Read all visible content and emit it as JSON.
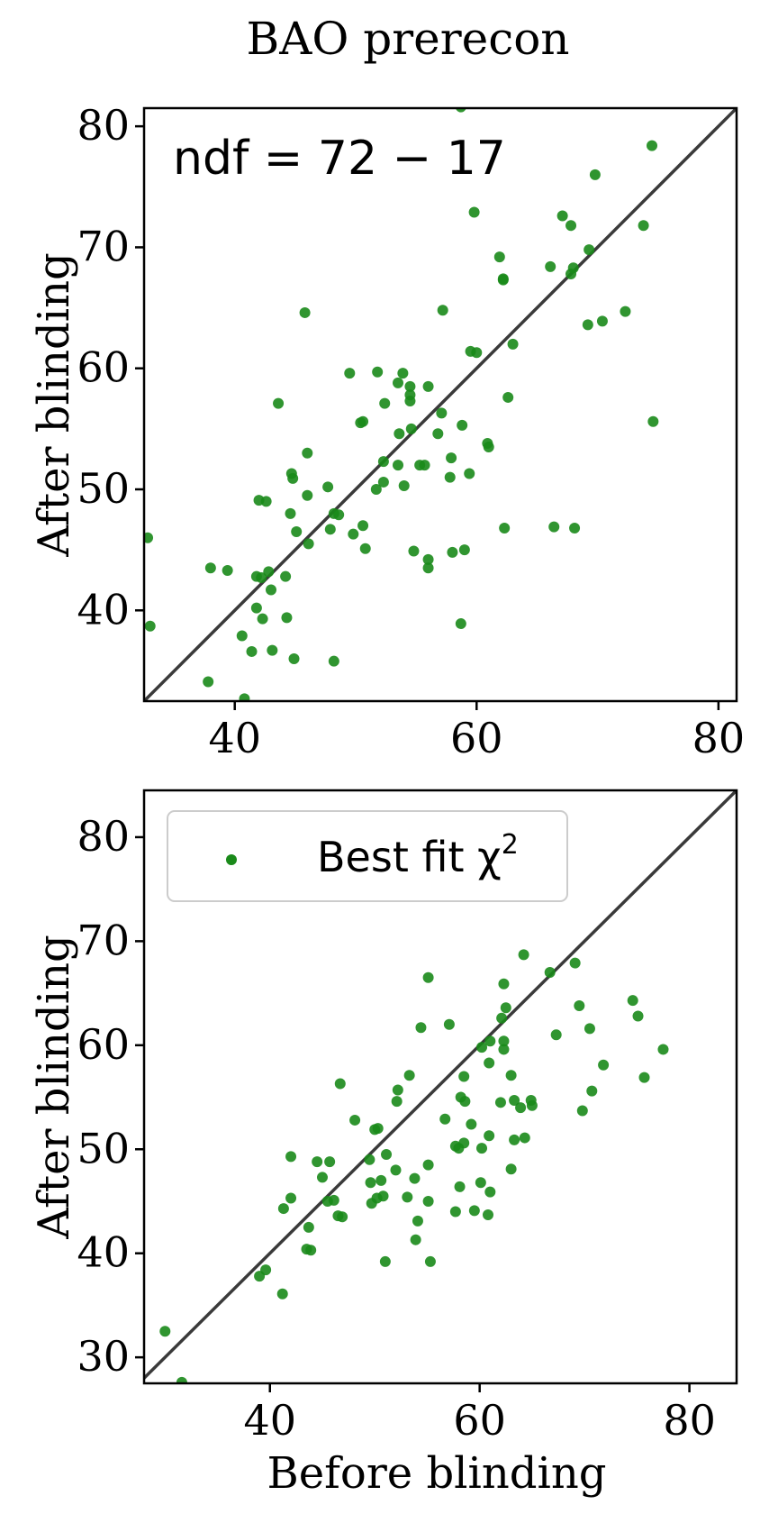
{
  "title": "BAO prerecon",
  "colors": {
    "points": "#1a8a1a",
    "diagonal": "#3a3a3a",
    "axes": "#000000"
  },
  "chart_data": [
    {
      "type": "scatter",
      "xlabel": "",
      "ylabel": "After blinding",
      "xlim": [
        32.5,
        81.5
      ],
      "ylim": [
        32.5,
        81.5
      ],
      "xticks": [
        "40",
        "60",
        "80"
      ],
      "yticks": [
        "40",
        "50",
        "60",
        "70",
        "80"
      ],
      "annotation": "ndf = 72 − 17",
      "diagonal": true,
      "grid": false,
      "points": [
        [
          58.7,
          81.6
        ],
        [
          74.5,
          78.4
        ],
        [
          69.8,
          76.0
        ],
        [
          59.8,
          72.9
        ],
        [
          67.1,
          72.6
        ],
        [
          67.8,
          71.8
        ],
        [
          73.8,
          71.8
        ],
        [
          61.9,
          69.2
        ],
        [
          69.3,
          69.8
        ],
        [
          66.1,
          68.4
        ],
        [
          68.0,
          68.3
        ],
        [
          62.2,
          67.3
        ],
        [
          62.2,
          67.4
        ],
        [
          67.8,
          67.8
        ],
        [
          45.8,
          64.6
        ],
        [
          57.2,
          64.8
        ],
        [
          72.3,
          64.7
        ],
        [
          70.4,
          63.9
        ],
        [
          69.2,
          63.6
        ],
        [
          63.0,
          62.0
        ],
        [
          59.5,
          61.4
        ],
        [
          60.0,
          61.3
        ],
        [
          49.5,
          59.6
        ],
        [
          51.8,
          59.7
        ],
        [
          53.9,
          59.6
        ],
        [
          53.5,
          58.8
        ],
        [
          54.5,
          58.5
        ],
        [
          56.0,
          58.5
        ],
        [
          54.5,
          57.8
        ],
        [
          54.5,
          57.3
        ],
        [
          62.6,
          57.6
        ],
        [
          52.4,
          57.1
        ],
        [
          43.6,
          57.1
        ],
        [
          57.1,
          56.3
        ],
        [
          74.6,
          55.6
        ],
        [
          50.6,
          55.6
        ],
        [
          50.4,
          55.5
        ],
        [
          58.8,
          55.3
        ],
        [
          54.6,
          55.0
        ],
        [
          53.6,
          54.6
        ],
        [
          56.8,
          54.6
        ],
        [
          60.9,
          53.8
        ],
        [
          61.0,
          53.5
        ],
        [
          46.0,
          53.0
        ],
        [
          57.9,
          52.6
        ],
        [
          53.5,
          52.0
        ],
        [
          55.3,
          52.0
        ],
        [
          55.7,
          52.0
        ],
        [
          52.3,
          52.3
        ],
        [
          44.7,
          51.3
        ],
        [
          44.8,
          50.9
        ],
        [
          57.8,
          51.0
        ],
        [
          59.4,
          51.3
        ],
        [
          52.3,
          50.6
        ],
        [
          54.0,
          50.3
        ],
        [
          47.7,
          50.2
        ],
        [
          51.7,
          50.0
        ],
        [
          46.0,
          49.5
        ],
        [
          42.0,
          49.1
        ],
        [
          42.6,
          49.0
        ],
        [
          48.2,
          48.0
        ],
        [
          48.6,
          47.9
        ],
        [
          44.6,
          48.0
        ],
        [
          47.9,
          46.7
        ],
        [
          49.8,
          46.3
        ],
        [
          50.6,
          47.0
        ],
        [
          45.1,
          46.5
        ],
        [
          62.3,
          46.8
        ],
        [
          66.4,
          46.9
        ],
        [
          68.1,
          46.8
        ],
        [
          46.1,
          45.5
        ],
        [
          50.8,
          45.1
        ],
        [
          54.8,
          44.9
        ],
        [
          58.0,
          44.8
        ],
        [
          59.0,
          45.0
        ],
        [
          56.0,
          44.2
        ],
        [
          56.0,
          43.5
        ],
        [
          32.8,
          46.0
        ],
        [
          38.0,
          43.5
        ],
        [
          39.4,
          43.3
        ],
        [
          41.8,
          42.8
        ],
        [
          42.2,
          42.7
        ],
        [
          42.8,
          43.2
        ],
        [
          44.2,
          42.8
        ],
        [
          43.0,
          41.7
        ],
        [
          41.8,
          40.2
        ],
        [
          42.3,
          39.3
        ],
        [
          44.3,
          39.4
        ],
        [
          58.7,
          38.9
        ],
        [
          33.0,
          38.7
        ],
        [
          40.6,
          37.9
        ],
        [
          41.4,
          36.6
        ],
        [
          43.1,
          36.7
        ],
        [
          44.9,
          36.0
        ],
        [
          48.2,
          35.8
        ],
        [
          37.8,
          34.1
        ],
        [
          40.8,
          32.7
        ]
      ]
    },
    {
      "type": "scatter",
      "xlabel": "Before blinding",
      "ylabel": "After blinding",
      "xlim": [
        28.0,
        84.5
      ],
      "ylim": [
        27.5,
        84.5
      ],
      "xticks": [
        "40",
        "60",
        "80"
      ],
      "yticks": [
        "30",
        "40",
        "50",
        "60",
        "70",
        "80"
      ],
      "legend": {
        "label": "Best fit χ",
        "superscript": "2",
        "placement": "top-left"
      },
      "diagonal": true,
      "grid": false,
      "points": [
        [
          64.2,
          68.7
        ],
        [
          66.7,
          67.0
        ],
        [
          69.1,
          67.9
        ],
        [
          55.1,
          66.5
        ],
        [
          62.3,
          65.9
        ],
        [
          74.6,
          64.3
        ],
        [
          69.5,
          63.8
        ],
        [
          62.5,
          63.6
        ],
        [
          75.1,
          62.8
        ],
        [
          62.1,
          62.6
        ],
        [
          54.4,
          61.7
        ],
        [
          57.1,
          62.0
        ],
        [
          70.5,
          61.6
        ],
        [
          67.3,
          61.0
        ],
        [
          61.0,
          60.4
        ],
        [
          62.3,
          60.4
        ],
        [
          60.2,
          59.8
        ],
        [
          62.3,
          59.6
        ],
        [
          77.5,
          59.6
        ],
        [
          71.8,
          58.1
        ],
        [
          60.9,
          58.3
        ],
        [
          53.3,
          57.1
        ],
        [
          58.5,
          57.0
        ],
        [
          63.0,
          57.1
        ],
        [
          75.7,
          56.9
        ],
        [
          46.7,
          56.3
        ],
        [
          52.2,
          55.7
        ],
        [
          70.7,
          55.6
        ],
        [
          58.2,
          55.0
        ],
        [
          64.9,
          54.7
        ],
        [
          63.3,
          54.7
        ],
        [
          52.1,
          54.6
        ],
        [
          58.6,
          54.6
        ],
        [
          63.9,
          54.0
        ],
        [
          65.0,
          54.2
        ],
        [
          62.0,
          54.5
        ],
        [
          69.8,
          53.7
        ],
        [
          56.7,
          52.9
        ],
        [
          48.1,
          52.8
        ],
        [
          50.0,
          51.9
        ],
        [
          50.3,
          52.0
        ],
        [
          59.2,
          52.4
        ],
        [
          60.9,
          51.3
        ],
        [
          64.3,
          51.1
        ],
        [
          63.3,
          50.9
        ],
        [
          57.7,
          50.3
        ],
        [
          58.5,
          50.6
        ],
        [
          60.2,
          50.1
        ],
        [
          58.0,
          50.1
        ],
        [
          42.0,
          49.3
        ],
        [
          51.1,
          49.5
        ],
        [
          44.5,
          48.8
        ],
        [
          45.7,
          48.8
        ],
        [
          55.1,
          48.5
        ],
        [
          49.5,
          49.0
        ],
        [
          52.0,
          48.0
        ],
        [
          63.0,
          48.1
        ],
        [
          45.0,
          47.3
        ],
        [
          53.8,
          47.2
        ],
        [
          50.6,
          47.0
        ],
        [
          49.6,
          46.8
        ],
        [
          60.1,
          46.8
        ],
        [
          58.1,
          46.4
        ],
        [
          61.0,
          45.9
        ],
        [
          50.8,
          45.5
        ],
        [
          50.2,
          45.3
        ],
        [
          53.1,
          45.4
        ],
        [
          49.7,
          44.8
        ],
        [
          46.1,
          45.1
        ],
        [
          45.5,
          45.0
        ],
        [
          55.1,
          45.0
        ],
        [
          42.0,
          45.3
        ],
        [
          59.5,
          44.1
        ],
        [
          57.7,
          44.0
        ],
        [
          60.8,
          43.7
        ],
        [
          41.3,
          44.3
        ],
        [
          46.5,
          43.6
        ],
        [
          46.9,
          43.5
        ],
        [
          54.1,
          43.1
        ],
        [
          43.7,
          42.5
        ],
        [
          43.5,
          40.4
        ],
        [
          43.9,
          40.3
        ],
        [
          53.9,
          41.3
        ],
        [
          55.3,
          39.2
        ],
        [
          51.0,
          39.2
        ],
        [
          39.6,
          38.4
        ],
        [
          39.0,
          37.8
        ],
        [
          41.2,
          36.1
        ],
        [
          30.0,
          32.5
        ],
        [
          31.6,
          27.6
        ]
      ]
    }
  ]
}
